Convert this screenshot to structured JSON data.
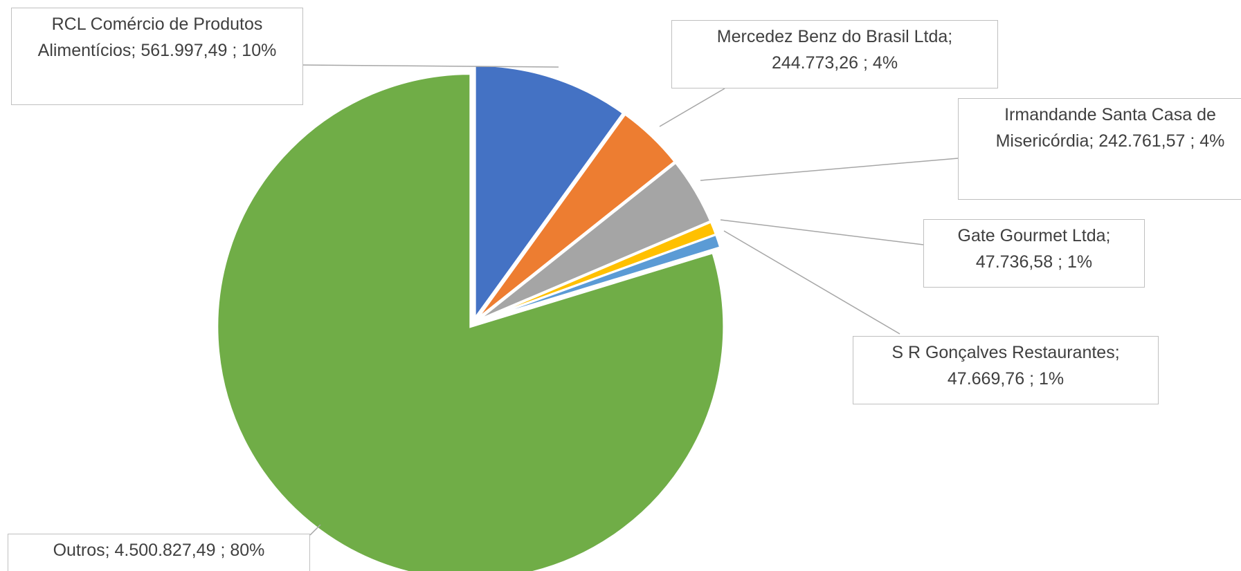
{
  "chart_data": {
    "type": "pie",
    "categories": [
      "RCL Comércio de Produtos Alimentícios",
      "Mercedez Benz do Brasil Ltda",
      "Irmandande Santa Casa de Misericórdia",
      "Gate Gourmet Ltda",
      "S R Gonçalves Restaurantes",
      "Outros"
    ],
    "values": [
      561997.49,
      244773.26,
      242761.57,
      47736.58,
      47669.76,
      4500827.49
    ],
    "value_labels": [
      "561.997,49",
      "244.773,26",
      "242.761,57",
      "47.736,58",
      "47.669,76",
      "4.500.827,49"
    ],
    "percent_labels": [
      "10%",
      "4%",
      "4%",
      "1%",
      "1%",
      "80%"
    ],
    "label_separator": ";",
    "colors": [
      "#4472c4",
      "#ed7d31",
      "#a5a5a5",
      "#ffc000",
      "#5b9bd5",
      "#70ad47"
    ]
  }
}
